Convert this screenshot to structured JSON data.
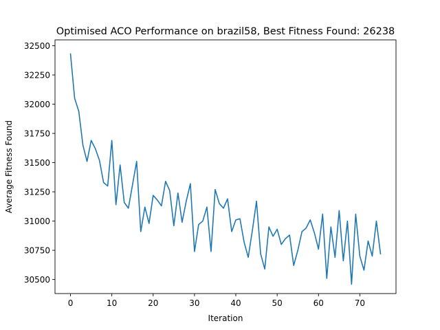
{
  "chart_data": {
    "type": "line",
    "title": "Optimised ACO Performance on brazil58, Best Fitness Found: 26238",
    "xlabel": "Iteration",
    "ylabel": "Average Fitness Found",
    "xlim": [
      -3.75,
      78.75
    ],
    "ylim": [
      30380,
      32550
    ],
    "x_ticks": [
      0,
      10,
      20,
      30,
      40,
      50,
      60,
      70
    ],
    "y_ticks": [
      30500,
      30750,
      31000,
      31250,
      31500,
      31750,
      32000,
      32250,
      32500
    ],
    "grid": false,
    "series": [
      {
        "color": "#1f77b4",
        "x": [
          0,
          1,
          2,
          3,
          4,
          5,
          6,
          7,
          8,
          9,
          10,
          11,
          12,
          13,
          14,
          15,
          16,
          17,
          18,
          19,
          20,
          21,
          22,
          23,
          24,
          25,
          26,
          27,
          28,
          29,
          30,
          31,
          32,
          33,
          34,
          35,
          36,
          37,
          38,
          39,
          40,
          41,
          42,
          43,
          44,
          45,
          46,
          47,
          48,
          49,
          50,
          51,
          52,
          53,
          54,
          55,
          56,
          57,
          58,
          59,
          60,
          61,
          62,
          63,
          64,
          65,
          66,
          67,
          68,
          69,
          70,
          71,
          72,
          73,
          74,
          75
        ],
        "y": [
          32430,
          32050,
          31940,
          31650,
          31510,
          31690,
          31620,
          31520,
          31330,
          31300,
          31690,
          31140,
          31480,
          31160,
          31110,
          31310,
          31510,
          30910,
          31120,
          30980,
          31220,
          31180,
          31130,
          31340,
          31260,
          30960,
          31240,
          30990,
          31170,
          31320,
          30740,
          30970,
          31000,
          31120,
          30740,
          31270,
          31150,
          31110,
          31190,
          30910,
          31010,
          31020,
          30820,
          30690,
          30920,
          31170,
          30720,
          30590,
          30950,
          30870,
          30930,
          30800,
          30850,
          30880,
          30620,
          30750,
          30910,
          30940,
          31010,
          30900,
          30760,
          31060,
          30510,
          30950,
          30690,
          31090,
          30660,
          31000,
          30460,
          31060,
          30700,
          30580,
          30830,
          30700,
          31000,
          30720
        ]
      }
    ]
  }
}
